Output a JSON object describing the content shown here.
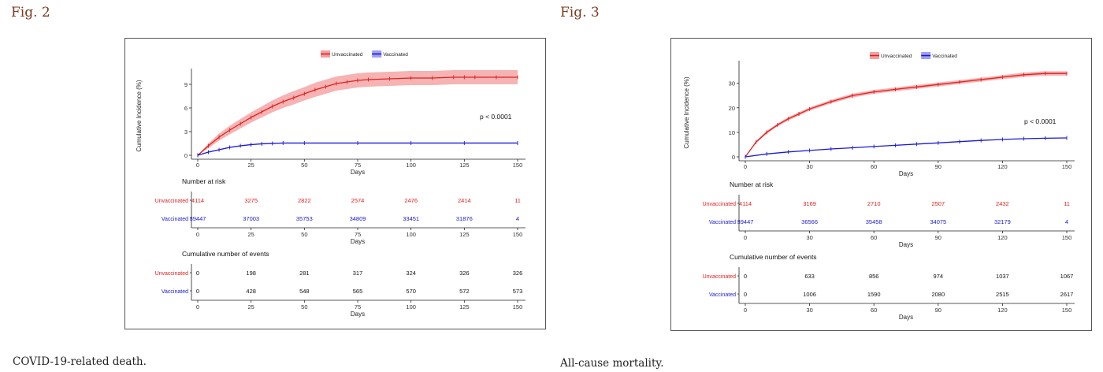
{
  "figures": [
    {
      "label": "Fig. 2",
      "caption": "COVID-19-related death.",
      "legend": [
        "Unvaccinated",
        "Vaccinated"
      ],
      "p_value": "p < 0.0001",
      "ylabel": "Cumulative Incidence (%)",
      "xlabel": "Days",
      "risk_title": "Number at risk",
      "events_title": "Cumulative number of events",
      "row_labels": [
        "Unvaccinated",
        "Vaccinated"
      ]
    },
    {
      "label": "Fig. 3",
      "caption": "All-cause mortality.",
      "legend": [
        "Unvaccinated",
        "Vaccinated"
      ],
      "p_value": "p < 0.0001",
      "ylabel": "Cumulative Incidence (%)",
      "xlabel": "Days",
      "risk_title": "Number at risk",
      "events_title": "Cumulative number of events",
      "row_labels": [
        "Unvaccinated",
        "Vaccinated"
      ]
    }
  ],
  "colors": {
    "unvaccinated": "#e02020",
    "vaccinated": "#1a1ad0",
    "band_unvax": "#f4a0a0",
    "band_vax": "#a0a0f4"
  },
  "chart_data": [
    {
      "type": "line",
      "xlabel": "Days",
      "ylabel": "Cumulative Incidence (%)",
      "xlim": [
        0,
        150
      ],
      "ylim": [
        0,
        10
      ],
      "x_ticks": [
        0,
        25,
        50,
        75,
        100,
        125,
        150
      ],
      "y_ticks": [
        0,
        3,
        6,
        9
      ],
      "legend_position": "top-center",
      "grid": false,
      "series": [
        {
          "name": "Unvaccinated",
          "x": [
            0,
            5,
            10,
            15,
            20,
            25,
            30,
            35,
            40,
            45,
            50,
            55,
            60,
            65,
            70,
            75,
            80,
            90,
            100,
            110,
            120,
            125,
            130,
            140,
            150
          ],
          "y": [
            0,
            1.2,
            2.3,
            3.2,
            4.0,
            4.8,
            5.5,
            6.2,
            6.8,
            7.3,
            7.8,
            8.3,
            8.7,
            9.1,
            9.3,
            9.5,
            9.6,
            9.7,
            9.8,
            9.8,
            9.9,
            9.9,
            9.9,
            9.9,
            9.9
          ],
          "ci_halfwidth": [
            0,
            0.3,
            0.45,
            0.55,
            0.6,
            0.65,
            0.7,
            0.75,
            0.8,
            0.85,
            0.85,
            0.9,
            0.9,
            0.9,
            0.9,
            0.9,
            0.9,
            0.9,
            0.9,
            0.9,
            0.9,
            0.9,
            0.9,
            0.9,
            0.9
          ]
        },
        {
          "name": "Vaccinated",
          "x": [
            0,
            5,
            10,
            15,
            20,
            25,
            30,
            35,
            40,
            50,
            75,
            100,
            125,
            150
          ],
          "y": [
            0,
            0.4,
            0.7,
            1.0,
            1.2,
            1.35,
            1.45,
            1.5,
            1.55,
            1.55,
            1.55,
            1.55,
            1.55,
            1.55
          ],
          "ci_halfwidth": [
            0,
            0.05,
            0.07,
            0.08,
            0.08,
            0.08,
            0.08,
            0.08,
            0.08,
            0.08,
            0.08,
            0.08,
            0.08,
            0.08
          ]
        }
      ],
      "at_risk": {
        "x": [
          0,
          25,
          50,
          75,
          100,
          125,
          150
        ],
        "unvaccinated": [
          "4114",
          "3275",
          "2822",
          "2574",
          "2476",
          "2414",
          "11"
        ],
        "vaccinated": [
          "39447",
          "37003",
          "35753",
          "34809",
          "33451",
          "31876",
          "4"
        ]
      },
      "events": {
        "x": [
          0,
          25,
          50,
          75,
          100,
          125,
          150
        ],
        "unvaccinated": [
          "0",
          "198",
          "281",
          "317",
          "324",
          "326",
          "326"
        ],
        "vaccinated": [
          "0",
          "428",
          "548",
          "565",
          "570",
          "572",
          "573"
        ]
      }
    },
    {
      "type": "line",
      "xlabel": "Days",
      "ylabel": "Cumulative Incidence (%)",
      "xlim": [
        0,
        150
      ],
      "ylim": [
        0,
        36
      ],
      "x_ticks": [
        0,
        30,
        60,
        90,
        120,
        150
      ],
      "y_ticks": [
        0,
        10,
        20,
        30
      ],
      "legend_position": "top-center",
      "grid": false,
      "series": [
        {
          "name": "Unvaccinated",
          "x": [
            0,
            5,
            10,
            15,
            20,
            25,
            30,
            40,
            50,
            60,
            70,
            80,
            90,
            100,
            110,
            120,
            130,
            140,
            150
          ],
          "y": [
            0,
            6,
            10,
            13,
            15.5,
            17.5,
            19.5,
            22.5,
            25,
            26.5,
            27.5,
            28.5,
            29.5,
            30.5,
            31.5,
            32.5,
            33.5,
            34,
            34
          ],
          "ci_halfwidth": [
            0,
            0.5,
            0.6,
            0.6,
            0.7,
            0.7,
            0.7,
            0.7,
            0.8,
            0.8,
            0.8,
            0.8,
            0.8,
            0.8,
            0.8,
            0.8,
            0.9,
            0.9,
            0.9
          ]
        },
        {
          "name": "Vaccinated",
          "x": [
            0,
            10,
            20,
            30,
            40,
            50,
            60,
            70,
            80,
            90,
            100,
            110,
            120,
            130,
            140,
            150
          ],
          "y": [
            0,
            1.2,
            2.0,
            2.6,
            3.2,
            3.7,
            4.2,
            4.7,
            5.2,
            5.7,
            6.2,
            6.7,
            7.1,
            7.4,
            7.6,
            7.7
          ],
          "ci_halfwidth": [
            0,
            0.1,
            0.1,
            0.1,
            0.1,
            0.1,
            0.1,
            0.1,
            0.1,
            0.1,
            0.1,
            0.1,
            0.1,
            0.1,
            0.1,
            0.1
          ]
        }
      ],
      "at_risk": {
        "x": [
          0,
          30,
          60,
          90,
          120,
          150
        ],
        "unvaccinated": [
          "4114",
          "3169",
          "2710",
          "2507",
          "2432",
          "11"
        ],
        "vaccinated": [
          "39447",
          "36566",
          "35458",
          "34075",
          "32179",
          "4"
        ]
      },
      "events": {
        "x": [
          0,
          30,
          60,
          90,
          120,
          150
        ],
        "unvaccinated": [
          "0",
          "633",
          "856",
          "974",
          "1037",
          "1067"
        ],
        "vaccinated": [
          "0",
          "1006",
          "1590",
          "2080",
          "2515",
          "2617"
        ]
      }
    }
  ]
}
